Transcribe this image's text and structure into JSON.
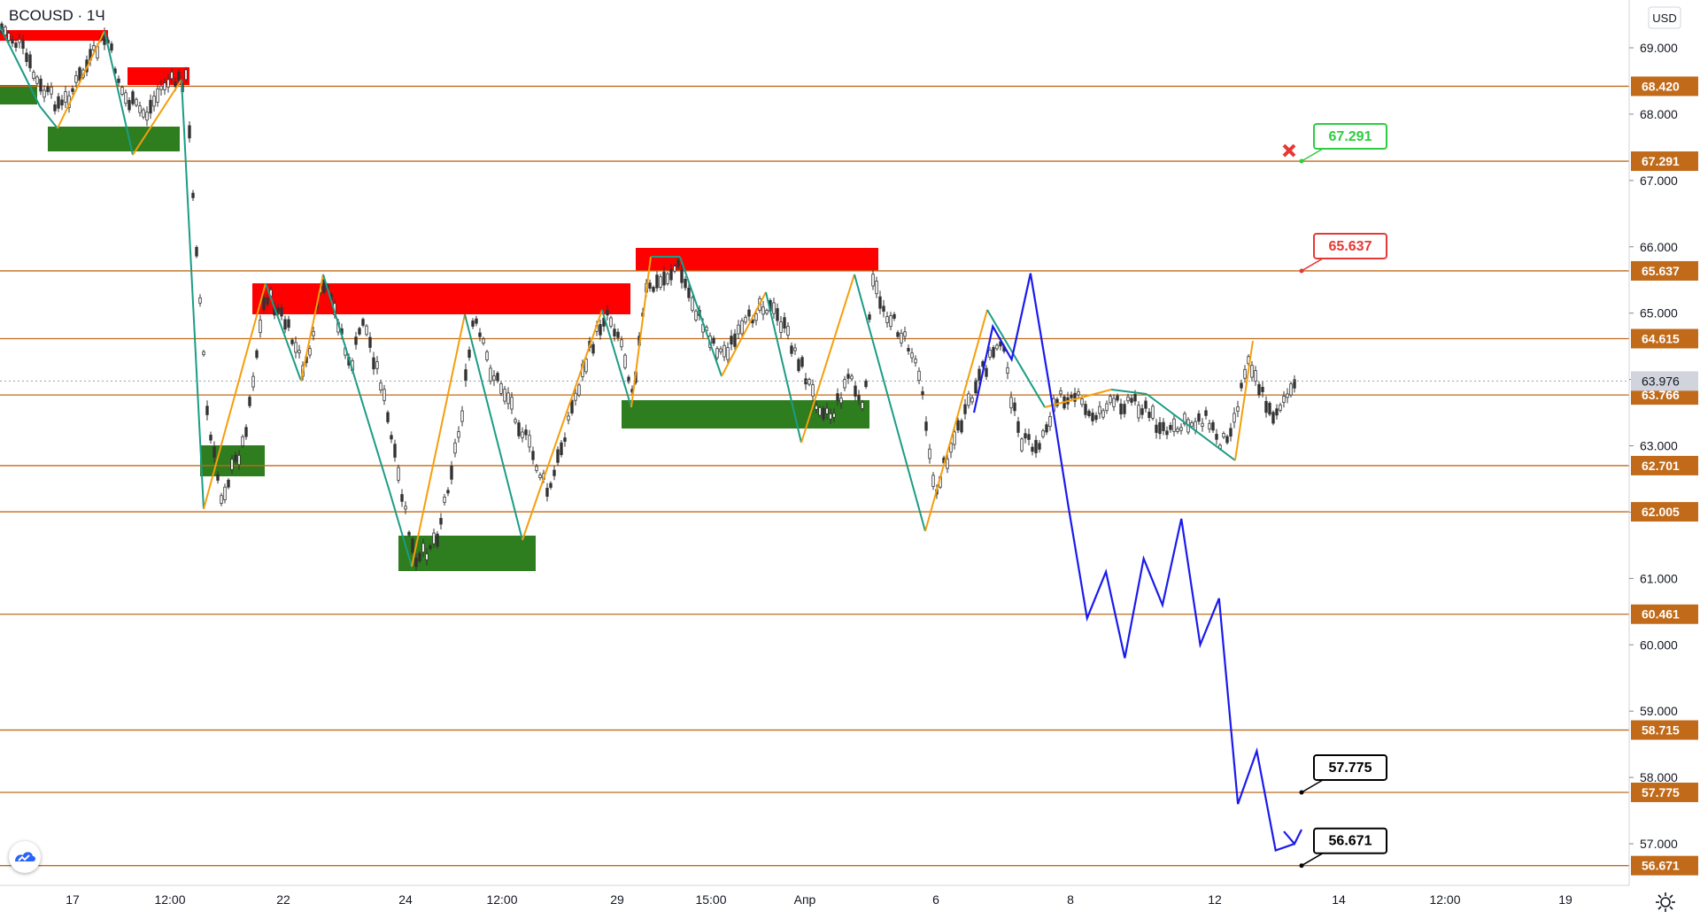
{
  "header": {
    "symbol": "BCOUSD",
    "interval": "1Ч"
  },
  "currency": "USD",
  "current_price": "63.976",
  "chart_data": {
    "type": "line",
    "ylim": [
      56.2,
      69.8
    ],
    "x_ticks": [
      "17",
      "12:00",
      "22",
      "24",
      "12:00",
      "29",
      "15:00",
      "Апр",
      "6",
      "8",
      "12",
      "14",
      "12:00",
      "19"
    ],
    "y_ticks": [
      "69.000",
      "68.000",
      "67.000",
      "66.000",
      "65.000",
      "64.000",
      "63.000",
      "62.000",
      "61.000",
      "60.000",
      "59.000",
      "58.000",
      "57.000"
    ],
    "levels": [
      "68.420",
      "67.291",
      "65.637",
      "64.615",
      "63.766",
      "62.701",
      "62.005",
      "60.461",
      "58.715",
      "57.775",
      "56.671"
    ],
    "level_values": [
      68.42,
      67.291,
      65.637,
      64.615,
      63.766,
      62.701,
      62.005,
      60.461,
      58.715,
      57.775,
      56.671
    ],
    "targets": [
      {
        "label": "67.291",
        "value": 67.291,
        "color": "#2ecc40"
      },
      {
        "label": "65.637",
        "value": 65.637,
        "color": "#e53935"
      },
      {
        "label": "57.775",
        "value": 57.775,
        "color": "#000000"
      },
      {
        "label": "56.671",
        "value": 56.671,
        "color": "#000000"
      }
    ],
    "forecast_path": [
      63.5,
      64.8,
      64.3,
      65.6,
      63.9,
      62.1,
      60.4,
      61.1,
      59.8,
      61.3,
      60.6,
      61.9,
      60.0,
      60.7,
      57.6,
      58.4,
      56.9,
      57.0
    ],
    "colors": {
      "level": "#c06a1a",
      "supply_zone": "#ff0000",
      "demand_zone": "#2e7d1e",
      "forecast": "#1a1aee",
      "zigzag_up": "#f59e0b",
      "zigzag_down": "#1b9c85"
    }
  }
}
